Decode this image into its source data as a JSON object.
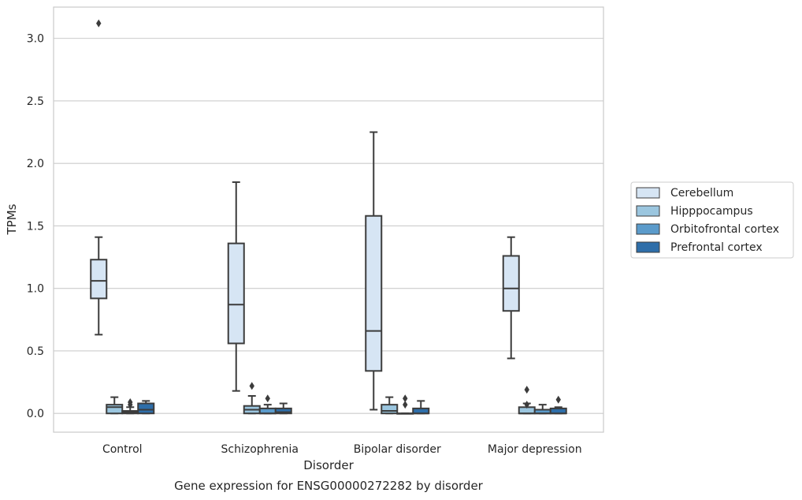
{
  "chart_data": {
    "type": "boxplot",
    "title": "Gene expression for ENSG00000272282 by disorder",
    "xlabel": "Disorder",
    "ylabel": "TPMs",
    "ylim": [
      -0.15,
      3.25
    ],
    "yticks": [
      0.0,
      0.5,
      1.0,
      1.5,
      2.0,
      2.5,
      3.0
    ],
    "ytick_labels": [
      "0.0",
      "0.5",
      "1.0",
      "1.5",
      "2.0",
      "2.5",
      "3.0"
    ],
    "grid": "horizontal",
    "legend_position": "right",
    "categories": [
      "Control",
      "Schizophrenia",
      "Bipolar disorder",
      "Major depression"
    ],
    "series": [
      {
        "name": "Cerebellum",
        "color": "#d6e5f4",
        "boxes": [
          {
            "whislo": 0.63,
            "q1": 0.92,
            "med": 1.06,
            "q3": 1.23,
            "whishi": 1.41,
            "fliers": [
              3.12
            ]
          },
          {
            "whislo": 0.18,
            "q1": 0.56,
            "med": 0.87,
            "q3": 1.36,
            "whishi": 1.85,
            "fliers": []
          },
          {
            "whislo": 0.03,
            "q1": 0.34,
            "med": 0.66,
            "q3": 1.58,
            "whishi": 2.25,
            "fliers": []
          },
          {
            "whislo": 0.44,
            "q1": 0.82,
            "med": 1.0,
            "q3": 1.26,
            "whishi": 1.41,
            "fliers": []
          }
        ]
      },
      {
        "name": "Hipppocampus",
        "color": "#9bc6df",
        "boxes": [
          {
            "whislo": 0.0,
            "q1": 0.0,
            "med": 0.05,
            "q3": 0.07,
            "whishi": 0.13,
            "fliers": []
          },
          {
            "whislo": 0.0,
            "q1": 0.0,
            "med": 0.03,
            "q3": 0.06,
            "whishi": 0.14,
            "fliers": [
              0.22
            ]
          },
          {
            "whislo": 0.0,
            "q1": 0.0,
            "med": 0.02,
            "q3": 0.07,
            "whishi": 0.13,
            "fliers": []
          },
          {
            "whislo": 0.0,
            "q1": 0.0,
            "med": 0.0,
            "q3": 0.05,
            "whishi": 0.08,
            "fliers": [
              0.07,
              0.19
            ]
          }
        ]
      },
      {
        "name": "Orbitofrontal cortex",
        "color": "#5b9bcb",
        "boxes": [
          {
            "whislo": 0.0,
            "q1": 0.0,
            "med": 0.01,
            "q3": 0.02,
            "whishi": 0.05,
            "fliers": [
              0.07,
              0.09
            ]
          },
          {
            "whislo": 0.0,
            "q1": 0.0,
            "med": 0.0,
            "q3": 0.04,
            "whishi": 0.07,
            "fliers": [
              0.12
            ]
          },
          {
            "whislo": 0.0,
            "q1": 0.0,
            "med": 0.0,
            "q3": 0.0,
            "whishi": 0.0,
            "fliers": [
              0.07,
              0.12
            ]
          },
          {
            "whislo": 0.0,
            "q1": 0.0,
            "med": 0.0,
            "q3": 0.03,
            "whishi": 0.07,
            "fliers": []
          }
        ]
      },
      {
        "name": "Prefrontal cortex",
        "color": "#2e6ea9",
        "boxes": [
          {
            "whislo": 0.0,
            "q1": 0.0,
            "med": 0.03,
            "q3": 0.08,
            "whishi": 0.1,
            "fliers": []
          },
          {
            "whislo": 0.0,
            "q1": 0.0,
            "med": 0.01,
            "q3": 0.04,
            "whishi": 0.08,
            "fliers": []
          },
          {
            "whislo": 0.0,
            "q1": 0.0,
            "med": 0.0,
            "q3": 0.04,
            "whishi": 0.1,
            "fliers": []
          },
          {
            "whislo": 0.0,
            "q1": 0.0,
            "med": 0.0,
            "q3": 0.04,
            "whishi": 0.05,
            "fliers": [
              0.11
            ]
          }
        ]
      }
    ]
  }
}
